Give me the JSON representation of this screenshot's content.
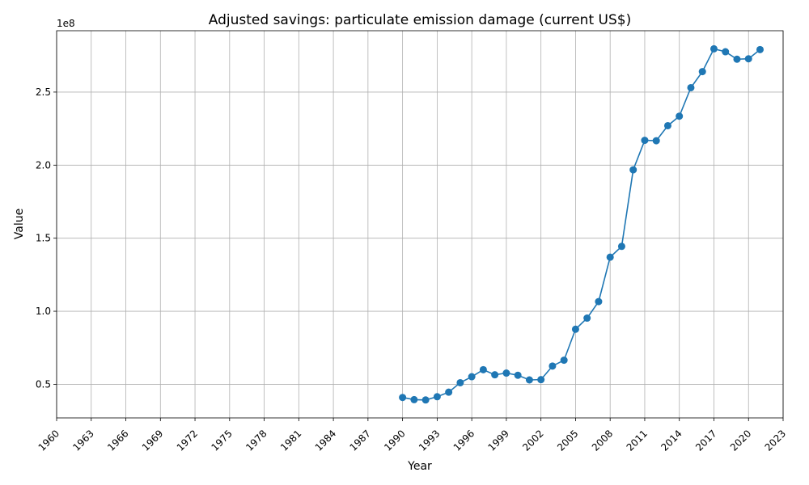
{
  "chart_data": {
    "type": "line",
    "title": "Adjusted savings: particulate emission damage (current US$)",
    "xlabel": "Year",
    "ylabel": "Value",
    "offset_label": "1e8",
    "xlim": [
      1960,
      2023
    ],
    "ylim": [
      27000000.0,
      292000000.0
    ],
    "x_ticks": [
      1960,
      1963,
      1966,
      1969,
      1972,
      1975,
      1978,
      1981,
      1984,
      1987,
      1990,
      1993,
      1996,
      1999,
      2002,
      2005,
      2008,
      2011,
      2014,
      2017,
      2020,
      2023
    ],
    "y_ticks": [
      {
        "value": 50000000.0,
        "label": "0.5"
      },
      {
        "value": 100000000.0,
        "label": "1.0"
      },
      {
        "value": 150000000.0,
        "label": "1.5"
      },
      {
        "value": 200000000.0,
        "label": "2.0"
      },
      {
        "value": 250000000.0,
        "label": "2.5"
      }
    ],
    "grid": true,
    "color": "#1f77b4",
    "series": [
      {
        "x": [
          1990,
          1991,
          1992,
          1993,
          1994,
          1995,
          1996,
          1997,
          1998,
          1999,
          2000,
          2001,
          2002,
          2003,
          2004,
          2005,
          2006,
          2007,
          2008,
          2009,
          2010,
          2011,
          2012,
          2013,
          2014,
          2015,
          2016,
          2017,
          2018,
          2019,
          2020,
          2021
        ],
        "y": [
          41000000,
          39500000,
          39300000,
          41500000,
          44600000,
          51100000,
          55200000,
          60000000,
          56500000,
          57700000,
          56200000,
          53000000,
          53200000,
          62500000,
          66500000,
          87700000,
          95300000,
          106600000,
          137000000,
          144400000,
          196800000,
          217000000,
          216700000,
          227000000,
          233500000,
          253000000,
          264000000,
          279600000,
          277600000,
          272500000,
          272800000,
          279100000
        ]
      }
    ]
  }
}
